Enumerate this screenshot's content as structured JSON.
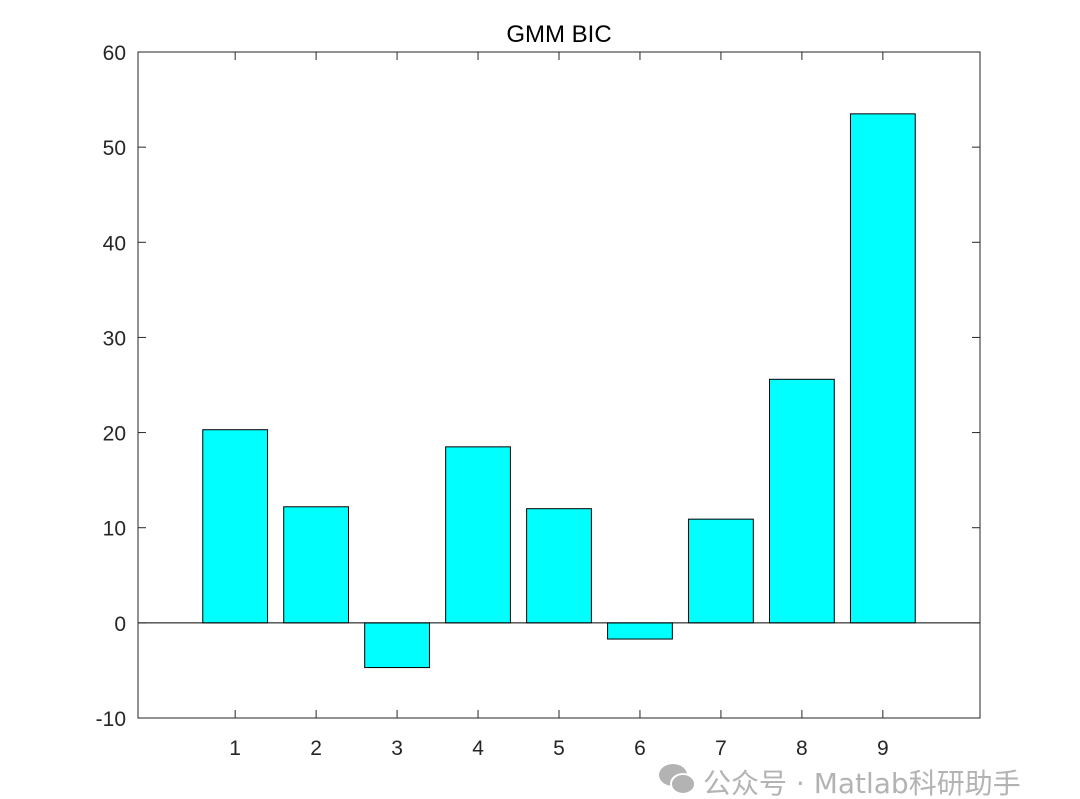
{
  "chart_data": {
    "type": "bar",
    "title": "GMM BIC",
    "xlabel": "",
    "ylabel": "",
    "categories": [
      "1",
      "2",
      "3",
      "4",
      "5",
      "6",
      "7",
      "8",
      "9"
    ],
    "values": [
      20.3,
      12.2,
      -4.7,
      18.5,
      12.0,
      -1.7,
      10.9,
      25.6,
      53.5
    ],
    "xlim": [
      -0.2,
      10.2
    ],
    "ylim": [
      -10,
      60
    ],
    "yticks": [
      -10,
      0,
      10,
      20,
      30,
      40,
      50,
      60
    ],
    "bar_width": 0.8,
    "grid": false,
    "colors": {
      "bar_fill": "#00ffff",
      "bar_edge": "#000000",
      "axis": "#262626"
    }
  },
  "watermark": {
    "text": "公众号 · Matlab科研助手",
    "icon": "wechat-icon"
  }
}
